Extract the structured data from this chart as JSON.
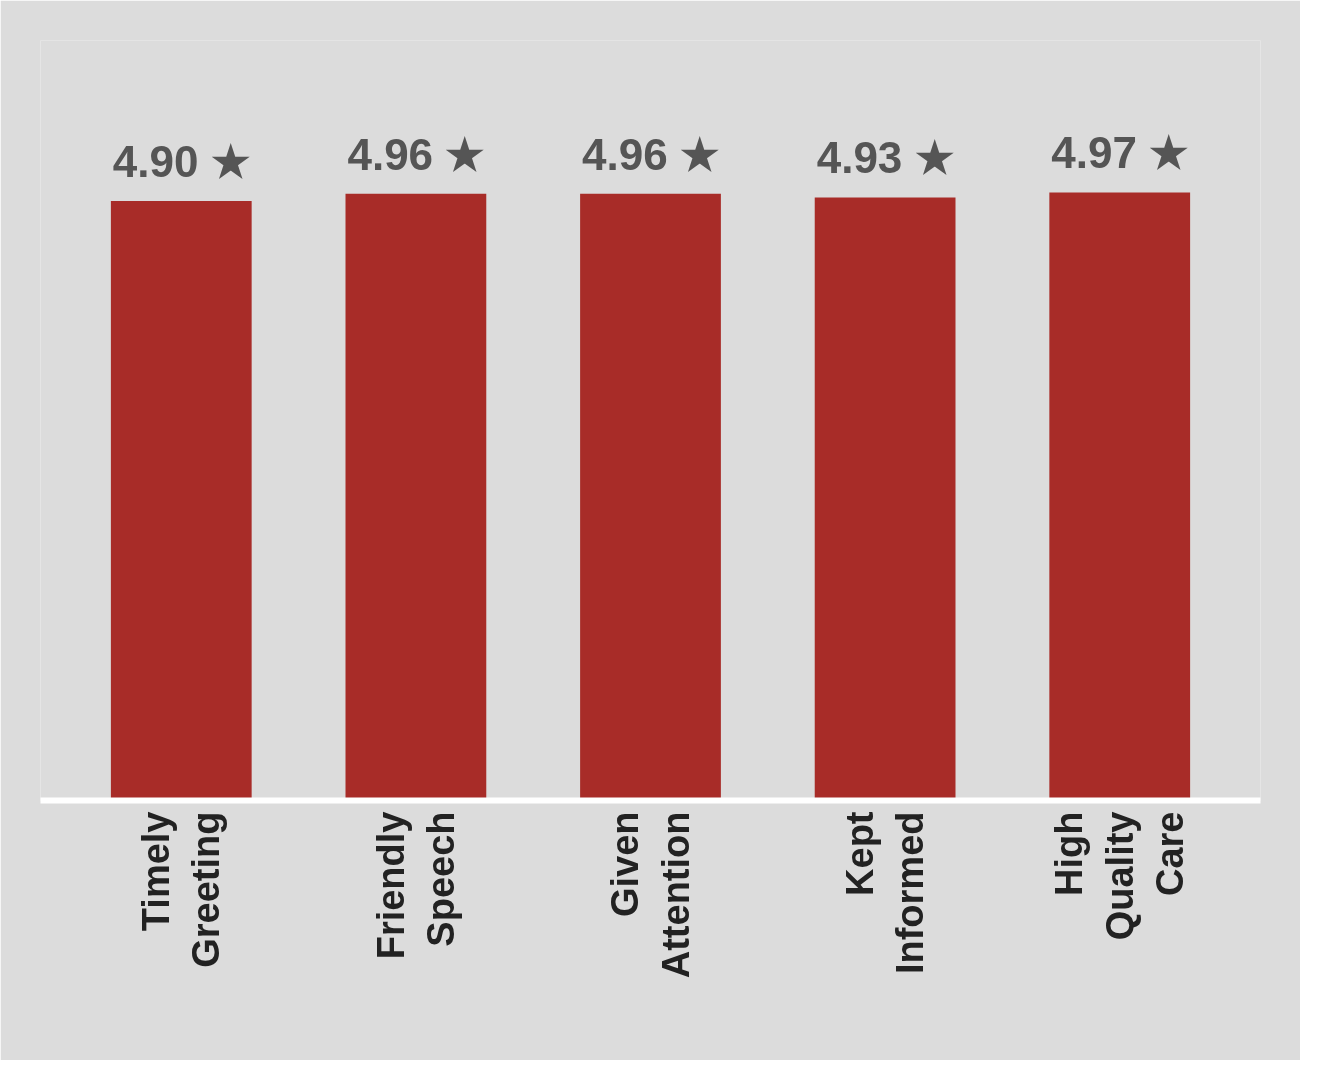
{
  "chart_data": {
    "type": "bar",
    "categories": [
      "Timely\nGreeting",
      "Friendly\nSpeech",
      "Given\nAttention",
      "Kept\nInformed",
      "High\nQuality\nCare"
    ],
    "values": [
      4.9,
      4.96,
      4.96,
      4.93,
      4.97
    ],
    "value_labels": [
      "4.90 ★",
      "4.96 ★",
      "4.96 ★",
      "4.93 ★",
      "4.97 ★"
    ],
    "color": "#a82c28",
    "grid": false,
    "tick_labels": "x"
  }
}
